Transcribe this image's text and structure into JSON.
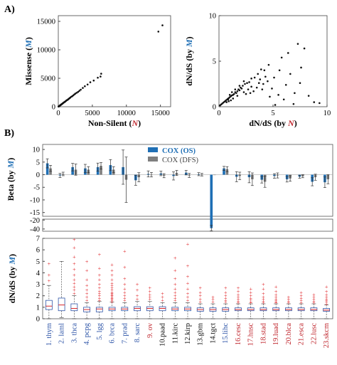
{
  "panel_labels": {
    "a": "A)",
    "b": "B)"
  },
  "colors": {
    "blue": "#1f6fb5",
    "red": "#c0282f",
    "gray": "#7f7f7f",
    "dark": "#111111",
    "box_blue": "#2f56a8",
    "box_median": "#d9262a",
    "outlier": "#e0262a"
  },
  "chart_data": [
    {
      "id": "a-left",
      "type": "scatter",
      "ylabel_parts": {
        "prefix": "Missense (",
        "letter": "M",
        "suffix": ")"
      },
      "xlabel_parts": {
        "prefix": "Non-Silent (",
        "letter": "N",
        "suffix": ")"
      },
      "xlim": [
        0,
        16500
      ],
      "ylim": [
        0,
        16000
      ],
      "xticks": [
        0,
        5000,
        10000,
        15000
      ],
      "yticks": [
        0,
        5000,
        10000,
        15000
      ],
      "points": [
        [
          15300,
          14300
        ],
        [
          14700,
          13200
        ],
        [
          6300,
          5800
        ],
        [
          6200,
          5300
        ],
        [
          5800,
          5100
        ],
        [
          5200,
          4600
        ],
        [
          4700,
          4300
        ],
        [
          4300,
          3900
        ],
        [
          3900,
          3600
        ],
        [
          3600,
          3300
        ],
        [
          3300,
          3000
        ],
        [
          3100,
          2800
        ],
        [
          2900,
          2600
        ],
        [
          2700,
          2450
        ],
        [
          2500,
          2300
        ],
        [
          2350,
          2150
        ],
        [
          2200,
          2000
        ],
        [
          2050,
          1850
        ],
        [
          1900,
          1750
        ],
        [
          1750,
          1600
        ],
        [
          1650,
          1500
        ],
        [
          1550,
          1400
        ],
        [
          1450,
          1300
        ],
        [
          1350,
          1200
        ],
        [
          1250,
          1150
        ],
        [
          1150,
          1050
        ],
        [
          1050,
          950
        ],
        [
          980,
          880
        ],
        [
          900,
          820
        ],
        [
          830,
          760
        ],
        [
          760,
          700
        ],
        [
          700,
          640
        ],
        [
          640,
          580
        ],
        [
          580,
          520
        ],
        [
          520,
          470
        ],
        [
          470,
          430
        ],
        [
          420,
          380
        ],
        [
          370,
          330
        ],
        [
          320,
          290
        ],
        [
          270,
          240
        ],
        [
          230,
          200
        ],
        [
          190,
          170
        ],
        [
          150,
          140
        ],
        [
          110,
          100
        ],
        [
          80,
          70
        ],
        [
          50,
          45
        ],
        [
          30,
          25
        ]
      ]
    },
    {
      "id": "a-right",
      "type": "scatter",
      "ylabel_parts": {
        "prefix": "dN/dS (by ",
        "letter": "M",
        "suffix": ")"
      },
      "xlabel_parts": {
        "prefix": "dN/dS (by ",
        "letter": "N",
        "suffix": ")"
      },
      "xlim": [
        0,
        10
      ],
      "ylim": [
        0,
        10
      ],
      "xticks": [
        0,
        5,
        10
      ],
      "yticks": [
        0,
        5,
        10
      ],
      "points": [
        [
          7.3,
          6.9
        ],
        [
          7.9,
          6.4
        ],
        [
          6.4,
          5.9
        ],
        [
          5.8,
          5.4
        ],
        [
          7.6,
          4.3
        ],
        [
          4.6,
          4.6
        ],
        [
          4.2,
          4.0
        ],
        [
          3.9,
          4.1
        ],
        [
          5.1,
          3.2
        ],
        [
          4.5,
          2.8
        ],
        [
          6.2,
          2.4
        ],
        [
          3.6,
          3.6
        ],
        [
          3.3,
          3.2
        ],
        [
          3.0,
          3.1
        ],
        [
          2.8,
          2.7
        ],
        [
          2.6,
          2.6
        ],
        [
          2.4,
          2.5
        ],
        [
          2.2,
          2.3
        ],
        [
          2.1,
          2.0
        ],
        [
          2.0,
          2.1
        ],
        [
          1.9,
          1.8
        ],
        [
          1.8,
          1.9
        ],
        [
          1.7,
          1.7
        ],
        [
          1.6,
          1.5
        ],
        [
          1.5,
          1.6
        ],
        [
          1.4,
          1.4
        ],
        [
          1.3,
          1.3
        ],
        [
          1.2,
          1.25
        ],
        [
          1.1,
          1.15
        ],
        [
          1.0,
          1.05
        ],
        [
          0.9,
          0.95
        ],
        [
          0.85,
          0.8
        ],
        [
          0.8,
          0.85
        ],
        [
          0.7,
          0.75
        ],
        [
          0.6,
          0.65
        ],
        [
          0.5,
          0.55
        ],
        [
          0.4,
          0.45
        ],
        [
          0.3,
          0.35
        ],
        [
          0.2,
          0.25
        ],
        [
          0.1,
          0.15
        ],
        [
          2.5,
          1.4
        ],
        [
          3.2,
          1.7
        ],
        [
          4.0,
          1.9
        ],
        [
          4.7,
          1.1
        ],
        [
          5.5,
          1.3
        ],
        [
          6.0,
          0.8
        ],
        [
          7.0,
          1.5
        ],
        [
          8.8,
          0.5
        ],
        [
          5.2,
          0.2
        ],
        [
          6.9,
          0.3
        ],
        [
          3.0,
          2.2
        ],
        [
          3.7,
          2.6
        ],
        [
          4.3,
          3.3
        ],
        [
          2.7,
          1.9
        ],
        [
          2.3,
          1.6
        ],
        [
          1.7,
          1.2
        ],
        [
          1.3,
          0.9
        ],
        [
          1.1,
          0.7
        ],
        [
          0.9,
          0.6
        ],
        [
          0.7,
          0.5
        ],
        [
          1.5,
          1.9
        ],
        [
          1.9,
          2.3
        ],
        [
          2.3,
          2.8
        ],
        [
          1.2,
          1.6
        ],
        [
          1.0,
          1.3
        ],
        [
          3.5,
          2.1
        ],
        [
          4.1,
          2.5
        ],
        [
          2.9,
          1.5
        ],
        [
          3.8,
          3.0
        ],
        [
          4.9,
          2.0
        ],
        [
          5.6,
          4.0
        ],
        [
          6.6,
          3.6
        ],
        [
          8.3,
          1.2
        ],
        [
          9.3,
          0.4
        ],
        [
          7.5,
          2.6
        ]
      ]
    },
    {
      "id": "b-top",
      "type": "bar",
      "ylabel_parts": {
        "prefix": "Beta (by ",
        "letter": "M",
        "suffix": ")"
      },
      "yticks_upper": [
        10,
        5,
        0,
        -5,
        -10,
        -15
      ],
      "yticks_lower": [
        -20,
        -40
      ],
      "legend": {
        "position": "top-center",
        "items": [
          {
            "label": "COX (OS)",
            "color": "#1f6fb5"
          },
          {
            "label": "COX (DFS)",
            "color": "#7f7f7f"
          }
        ]
      },
      "series": [
        {
          "name": "COX (OS)",
          "values": [
            4.5,
            -0.3,
            3.0,
            2.5,
            3.0,
            3.8,
            3.0,
            -2.2,
            0.3,
            0.5,
            -0.5,
            0.8,
            0.2,
            -38,
            2.5,
            -0.8,
            -1.0,
            -2.0,
            -0.5,
            -1.8,
            -0.8,
            -2.8,
            -3.0
          ],
          "err": [
            1.8,
            0.8,
            1.5,
            1.6,
            1.6,
            2.2,
            6.8,
            2.0,
            1.2,
            0.9,
            1.6,
            0.9,
            0.6,
            6.0,
            0.8,
            2.0,
            2.2,
            1.3,
            0.9,
            1.1,
            0.6,
            1.6,
            2.1
          ]
        },
        {
          "name": "COX (DFS)",
          "values": [
            2.5,
            0.3,
            2.0,
            2.0,
            3.5,
            2.0,
            -2.0,
            -1.0,
            0.0,
            -0.4,
            0.7,
            -0.3,
            0.0,
            0.0,
            2.2,
            -0.5,
            -1.8,
            -2.8,
            -0.3,
            -1.5,
            -0.6,
            -1.0,
            -1.8
          ],
          "err": [
            1.2,
            0.7,
            2.2,
            1.2,
            1.3,
            1.2,
            9.0,
            1.8,
            0.9,
            0.8,
            1.0,
            0.8,
            0.5,
            0.0,
            1.0,
            1.5,
            2.5,
            2.2,
            1.0,
            1.1,
            0.6,
            1.2,
            1.8
          ]
        }
      ]
    },
    {
      "id": "b-bottom",
      "type": "box",
      "ylabel_parts": {
        "prefix": "dN/dS (by ",
        "letter": "M",
        "suffix": ")"
      },
      "ylim": [
        0,
        7
      ],
      "yticks": [
        0,
        1,
        2,
        3,
        4,
        5,
        6,
        7
      ],
      "categories": [
        {
          "label": "1. thym",
          "color": "#2f56a8"
        },
        {
          "label": "2. laml",
          "color": "#2f56a8"
        },
        {
          "label": "3. thca",
          "color": "#2f56a8"
        },
        {
          "label": "4. pcpg",
          "color": "#2f56a8"
        },
        {
          "label": "5. lgg",
          "color": "#2f56a8"
        },
        {
          "label": "6. brca",
          "color": "#2f56a8"
        },
        {
          "label": "7. prad",
          "color": "#2f56a8"
        },
        {
          "label": "8. sarc",
          "color": "#2f56a8"
        },
        {
          "label": "9. ov",
          "color": "#c0282f"
        },
        {
          "label": "10.paad",
          "color": "#111111"
        },
        {
          "label": "11.kirc",
          "color": "#111111"
        },
        {
          "label": "12.kirp",
          "color": "#111111"
        },
        {
          "label": "13.gbm",
          "color": "#111111"
        },
        {
          "label": "14.tgct",
          "color": "#111111"
        },
        {
          "label": "15.lihc",
          "color": "#2f56a8"
        },
        {
          "label": "16.cesc",
          "color": "#c0282f"
        },
        {
          "label": "17.hnsc",
          "color": "#c0282f"
        },
        {
          "label": "18.stad",
          "color": "#c0282f"
        },
        {
          "label": "19.luad",
          "color": "#c0282f"
        },
        {
          "label": "20.blca",
          "color": "#c0282f"
        },
        {
          "label": "21.esca",
          "color": "#c0282f"
        },
        {
          "label": "22.lusc",
          "color": "#c0282f"
        },
        {
          "label": "23.skcm",
          "color": "#c0282f"
        }
      ],
      "boxes": [
        {
          "q1": 0.8,
          "median": 1.1,
          "q3": 1.6,
          "lo": 0.0,
          "hi": 2.9,
          "outliers": [
            4.8,
            3.8,
            3.3
          ]
        },
        {
          "q1": 0.7,
          "median": 1.2,
          "q3": 1.8,
          "lo": 0.1,
          "hi": 5.0,
          "outliers": []
        },
        {
          "q1": 0.7,
          "median": 0.9,
          "q3": 1.3,
          "lo": 0.0,
          "hi": 2.0,
          "outliers": [
            2.2,
            2.5,
            2.8,
            3.1,
            3.4,
            3.8,
            4.3,
            4.8,
            5.4,
            6.2,
            6.9
          ]
        },
        {
          "q1": 0.6,
          "median": 0.8,
          "q3": 1.0,
          "lo": 0.0,
          "hi": 1.4,
          "outliers": [
            1.6,
            1.9,
            2.2,
            2.5,
            2.9,
            3.4,
            4.2,
            5.0
          ]
        },
        {
          "q1": 0.6,
          "median": 0.85,
          "q3": 1.0,
          "lo": 0.0,
          "hi": 1.5,
          "outliers": [
            1.6,
            1.8,
            2.0,
            2.2,
            2.4,
            2.7,
            3.0,
            3.4,
            3.8,
            4.4,
            5.6
          ]
        },
        {
          "q1": 0.7,
          "median": 0.85,
          "q3": 1.0,
          "lo": 0.0,
          "hi": 1.45,
          "outliers": [
            1.5,
            1.6,
            1.7,
            1.8,
            1.9,
            2.0,
            2.1,
            2.2,
            2.3,
            2.5,
            2.7,
            2.9,
            3.1,
            3.4,
            3.8,
            4.2,
            4.7
          ]
        },
        {
          "q1": 0.7,
          "median": 0.85,
          "q3": 1.0,
          "lo": 0.0,
          "hi": 1.4,
          "outliers": [
            1.6,
            1.8,
            2.0,
            2.3,
            2.6,
            3.0,
            3.5,
            4.5,
            5.9
          ]
        },
        {
          "q1": 0.7,
          "median": 0.9,
          "q3": 1.05,
          "lo": 0.0,
          "hi": 1.5,
          "outliers": [
            1.7,
            2.0,
            2.5,
            3.0
          ]
        },
        {
          "q1": 0.7,
          "median": 0.9,
          "q3": 1.05,
          "lo": 0.0,
          "hi": 1.5,
          "outliers": [
            1.7,
            1.9,
            2.1,
            2.4,
            2.7
          ]
        },
        {
          "q1": 0.7,
          "median": 0.9,
          "q3": 1.05,
          "lo": 0.0,
          "hi": 1.4,
          "outliers": [
            1.6,
            1.9,
            2.2
          ]
        },
        {
          "q1": 0.7,
          "median": 0.85,
          "q3": 1.0,
          "lo": 0.0,
          "hi": 1.4,
          "outliers": [
            1.6,
            1.8,
            2.0,
            2.3,
            2.6,
            3.0,
            3.5,
            4.2,
            5.3
          ]
        },
        {
          "q1": 0.7,
          "median": 0.85,
          "q3": 1.0,
          "lo": 0.0,
          "hi": 1.4,
          "outliers": [
            1.6,
            1.9,
            2.2,
            2.6,
            3.1,
            3.7,
            4.6,
            6.5
          ]
        },
        {
          "q1": 0.65,
          "median": 0.8,
          "q3": 0.95,
          "lo": 0.0,
          "hi": 1.3,
          "outliers": [
            1.5,
            1.7,
            2.0,
            2.3,
            2.7
          ]
        },
        {
          "q1": 0.65,
          "median": 0.8,
          "q3": 0.95,
          "lo": 0.0,
          "hi": 1.3,
          "outliers": [
            1.5,
            1.7,
            1.9
          ]
        },
        {
          "q1": 0.65,
          "median": 0.8,
          "q3": 0.95,
          "lo": 0.0,
          "hi": 1.3,
          "outliers": [
            1.45,
            1.6,
            1.8,
            2.0,
            2.3,
            2.7
          ]
        },
        {
          "q1": 0.7,
          "median": 0.8,
          "q3": 0.95,
          "lo": 0.0,
          "hi": 1.3,
          "outliers": [
            1.4,
            1.55,
            1.7,
            1.9,
            2.1,
            2.4,
            2.7
          ]
        },
        {
          "q1": 0.7,
          "median": 0.8,
          "q3": 0.95,
          "lo": 0.0,
          "hi": 1.3,
          "outliers": [
            1.4,
            1.5,
            1.65,
            1.8,
            2.0,
            2.3,
            2.6
          ]
        },
        {
          "q1": 0.7,
          "median": 0.8,
          "q3": 0.95,
          "lo": 0.0,
          "hi": 1.3,
          "outliers": [
            1.4,
            1.55,
            1.7,
            1.9,
            2.2,
            2.6,
            3.0
          ]
        },
        {
          "q1": 0.7,
          "median": 0.8,
          "q3": 0.95,
          "lo": 0.0,
          "hi": 1.3,
          "outliers": [
            1.4,
            1.5,
            1.6,
            1.75,
            1.9,
            2.1,
            2.4,
            2.8
          ]
        },
        {
          "q1": 0.7,
          "median": 0.8,
          "q3": 0.95,
          "lo": 0.0,
          "hi": 1.3,
          "outliers": [
            1.4,
            1.55,
            1.7,
            1.9
          ]
        },
        {
          "q1": 0.7,
          "median": 0.8,
          "q3": 0.95,
          "lo": 0.0,
          "hi": 1.3,
          "outliers": [
            1.4,
            1.6,
            1.8,
            2.0,
            2.3
          ]
        },
        {
          "q1": 0.7,
          "median": 0.8,
          "q3": 0.95,
          "lo": 0.0,
          "hi": 1.3,
          "outliers": [
            1.4,
            1.55,
            1.7,
            1.9,
            2.1
          ]
        },
        {
          "q1": 0.65,
          "median": 0.75,
          "q3": 0.9,
          "lo": 0.0,
          "hi": 1.2,
          "outliers": [
            1.3,
            1.45,
            1.6,
            1.75,
            1.9,
            2.1,
            2.4,
            2.8
          ]
        }
      ]
    }
  ]
}
